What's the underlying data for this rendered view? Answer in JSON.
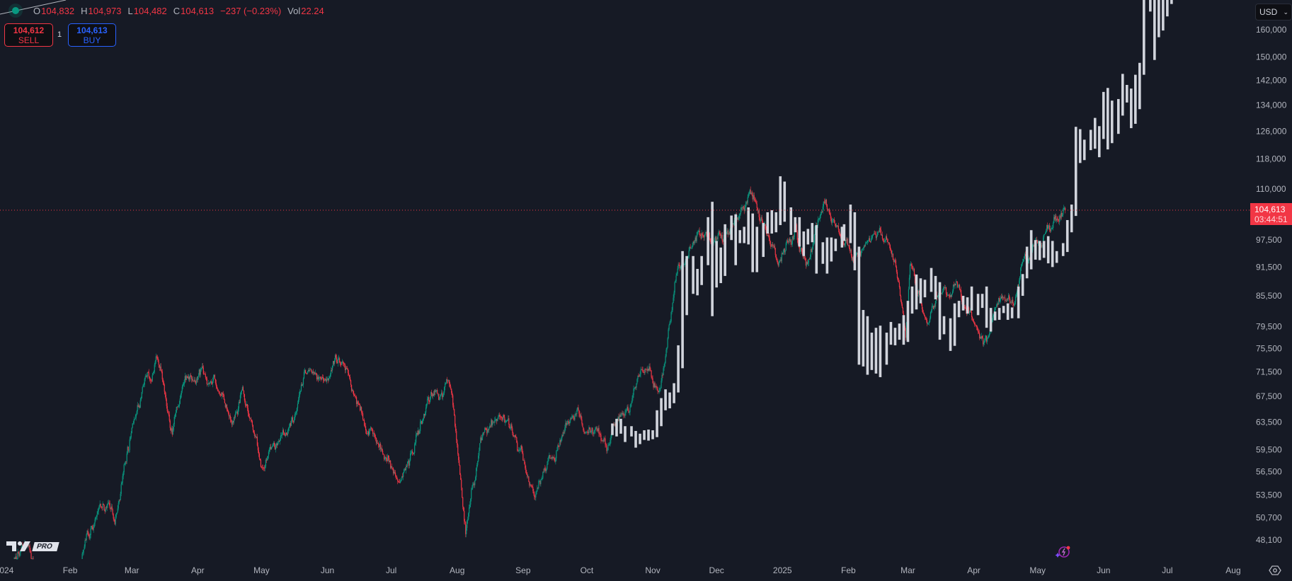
{
  "legend": {
    "open_label": "O",
    "open": "104,832",
    "high_label": "H",
    "high": "104,973",
    "low_label": "L",
    "low": "104,482",
    "close_label": "C",
    "close": "104,613",
    "change": "−237 (−0.23%)",
    "vol_label": "Vol",
    "vol": "22.24"
  },
  "trade": {
    "sell_price": "104,612",
    "sell_label": "SELL",
    "quantity": "1",
    "buy_price": "104,613",
    "buy_label": "BUY"
  },
  "currency": {
    "label": "USD",
    "icon": "chevron-down-icon"
  },
  "current_price": {
    "value": "104,613",
    "countdown": "03:44:51",
    "color": "#f23645"
  },
  "logo": {
    "text": "TV",
    "badge": "PRO"
  },
  "colors": {
    "up": "#089981",
    "down": "#f23645",
    "overlay": "#d1d4dc",
    "background": "#161a25",
    "text": "#b2b5be"
  },
  "chart_data": {
    "type": "candlestick",
    "y_scale": "log",
    "ylim": [
      46000,
      171600
    ],
    "xlim": [
      "2023-12-30",
      "2025-08-07"
    ],
    "grid": false,
    "price_axis_labels": [
      "160,000",
      "150,000",
      "142,000",
      "134,000",
      "126,000",
      "118,000",
      "110,000",
      "97,500",
      "91,500",
      "85,500",
      "79,500",
      "75,500",
      "71,500",
      "67,500",
      "63,500",
      "59,500",
      "56,500",
      "53,500",
      "50,700",
      "48,100"
    ],
    "time_axis_labels": [
      {
        "label": "2024",
        "date": "2024-01-01"
      },
      {
        "label": "Feb",
        "date": "2024-02-01"
      },
      {
        "label": "Mar",
        "date": "2024-03-01"
      },
      {
        "label": "Apr",
        "date": "2024-04-01"
      },
      {
        "label": "May",
        "date": "2024-05-01"
      },
      {
        "label": "Jun",
        "date": "2024-06-01"
      },
      {
        "label": "Jul",
        "date": "2024-07-01"
      },
      {
        "label": "Aug",
        "date": "2024-08-01"
      },
      {
        "label": "Sep",
        "date": "2024-09-01"
      },
      {
        "label": "Oct",
        "date": "2024-10-01"
      },
      {
        "label": "Nov",
        "date": "2024-11-01"
      },
      {
        "label": "Dec",
        "date": "2024-12-01"
      },
      {
        "label": "2025",
        "date": "2025-01-01"
      },
      {
        "label": "Feb",
        "date": "2025-02-01"
      },
      {
        "label": "Mar",
        "date": "2025-03-01"
      },
      {
        "label": "Apr",
        "date": "2025-04-01"
      },
      {
        "label": "May",
        "date": "2025-05-01"
      },
      {
        "label": "Jun",
        "date": "2025-06-01"
      },
      {
        "label": "Jul",
        "date": "2025-07-01"
      },
      {
        "label": "Aug",
        "date": "2025-08-01"
      }
    ],
    "last_price": 104613,
    "price_path": [
      [
        "2024-01-01",
        44000
      ],
      [
        "2024-01-10",
        47500
      ],
      [
        "2024-01-23",
        40000
      ],
      [
        "2024-02-05",
        45000
      ],
      [
        "2024-02-10",
        48000
      ],
      [
        "2024-02-15",
        52500
      ],
      [
        "2024-02-22",
        51000
      ],
      [
        "2024-02-26",
        57000
      ],
      [
        "2024-03-01",
        62500
      ],
      [
        "2024-03-05",
        67000
      ],
      [
        "2024-03-14",
        73000
      ],
      [
        "2024-03-20",
        62500
      ],
      [
        "2024-03-27",
        70500
      ],
      [
        "2024-04-08",
        71500
      ],
      [
        "2024-04-17",
        62000
      ],
      [
        "2024-04-22",
        66500
      ],
      [
        "2024-05-01",
        57000
      ],
      [
        "2024-05-10",
        61000
      ],
      [
        "2024-05-21",
        70500
      ],
      [
        "2024-06-07",
        71500
      ],
      [
        "2024-06-18",
        65000
      ],
      [
        "2024-07-05",
        54500
      ],
      [
        "2024-07-19",
        67500
      ],
      [
        "2024-07-29",
        69500
      ],
      [
        "2024-08-05",
        50000
      ],
      [
        "2024-08-12",
        60500
      ],
      [
        "2024-08-24",
        64000
      ],
      [
        "2024-09-06",
        53500
      ],
      [
        "2024-09-27",
        65500
      ],
      [
        "2024-10-10",
        59500
      ],
      [
        "2024-10-29",
        72000
      ],
      [
        "2024-11-04",
        67500
      ],
      [
        "2024-11-12",
        89500
      ],
      [
        "2024-11-22",
        98500
      ],
      [
        "2024-12-01",
        96500
      ],
      [
        "2024-12-17",
        107500
      ],
      [
        "2024-12-30",
        92500
      ],
      [
        "2025-01-07",
        100500
      ],
      [
        "2025-01-12",
        93000
      ],
      [
        "2025-01-21",
        107000
      ],
      [
        "2025-01-27",
        100500
      ],
      [
        "2025-02-03",
        92000
      ],
      [
        "2025-02-12",
        97500
      ],
      [
        "2025-02-20",
        98000
      ],
      [
        "2025-02-25",
        88500
      ],
      [
        "2025-02-28",
        79500
      ],
      [
        "2025-03-02",
        93500
      ],
      [
        "2025-03-10",
        78500
      ],
      [
        "2025-03-15",
        84000
      ],
      [
        "2025-03-24",
        88000
      ],
      [
        "2025-03-31",
        82500
      ],
      [
        "2025-04-07",
        76000
      ],
      [
        "2025-04-12",
        84500
      ],
      [
        "2025-04-20",
        85000
      ],
      [
        "2025-04-25",
        94000
      ],
      [
        "2025-05-02",
        96500
      ],
      [
        "2025-05-09",
        103000
      ],
      [
        "2025-05-14",
        104613
      ]
    ],
    "overlay_bars": [
      [
        "2024-10-13",
        61600,
        63300
      ],
      [
        "2024-10-15",
        61400,
        64000
      ],
      [
        "2024-10-17",
        61800,
        64000
      ],
      [
        "2024-10-19",
        60600,
        62900
      ],
      [
        "2024-10-22",
        61400,
        62900
      ],
      [
        "2024-10-24",
        59800,
        62200
      ],
      [
        "2024-10-26",
        60300,
        61800
      ],
      [
        "2024-10-28",
        60900,
        62300
      ],
      [
        "2024-10-30",
        60800,
        62400
      ],
      [
        "2024-11-01",
        61000,
        62300
      ],
      [
        "2024-11-03",
        61300,
        65300
      ],
      [
        "2024-11-05",
        62900,
        67200
      ],
      [
        "2024-11-07",
        65300,
        68600
      ],
      [
        "2024-11-09",
        65600,
        68100
      ],
      [
        "2024-11-11",
        66400,
        69600
      ],
      [
        "2024-11-13",
        68100,
        76100
      ],
      [
        "2024-11-15",
        72100,
        95000
      ],
      [
        "2024-11-17",
        81700,
        93900
      ],
      [
        "2024-11-20",
        85900,
        93900
      ],
      [
        "2024-11-22",
        85600,
        91100
      ],
      [
        "2024-11-24",
        87700,
        93900
      ],
      [
        "2024-11-27",
        91900,
        102900
      ],
      [
        "2024-11-29",
        81500,
        106700
      ],
      [
        "2024-12-01",
        87200,
        97300
      ],
      [
        "2024-12-03",
        88100,
        95800
      ],
      [
        "2024-12-05",
        89600,
        101200
      ],
      [
        "2024-12-08",
        97500,
        103300
      ],
      [
        "2024-12-10",
        91900,
        103600
      ],
      [
        "2024-12-12",
        96800,
        99800
      ],
      [
        "2024-12-14",
        96800,
        100600
      ],
      [
        "2024-12-16",
        96500,
        105300
      ],
      [
        "2024-12-18",
        90400,
        103800
      ],
      [
        "2024-12-20",
        90400,
        100600
      ],
      [
        "2024-12-23",
        93700,
        101500
      ],
      [
        "2024-12-25",
        99000,
        104100
      ],
      [
        "2024-12-27",
        99000,
        104600
      ],
      [
        "2024-12-29",
        99300,
        104100
      ],
      [
        "2024-12-31",
        101000,
        113300
      ],
      [
        "2025-01-02",
        101800,
        111900
      ],
      [
        "2025-01-05",
        98700,
        105300
      ],
      [
        "2025-01-07",
        99300,
        102900
      ],
      [
        "2025-01-09",
        96000,
        102900
      ],
      [
        "2025-01-11",
        93900,
        99500
      ],
      [
        "2025-01-13",
        96500,
        100100
      ],
      [
        "2025-01-15",
        97000,
        101500
      ],
      [
        "2025-01-17",
        90100,
        101000
      ],
      [
        "2025-01-20",
        92200,
        97000
      ],
      [
        "2025-01-22",
        90100,
        98100
      ],
      [
        "2025-01-24",
        92700,
        98100
      ],
      [
        "2025-01-26",
        95000,
        97800
      ],
      [
        "2025-01-29",
        95800,
        100600
      ],
      [
        "2025-01-30",
        97300,
        101200
      ],
      [
        "2025-02-02",
        96800,
        106000
      ],
      [
        "2025-02-04",
        90800,
        104100
      ],
      [
        "2025-02-06",
        72700,
        96000
      ],
      [
        "2025-02-08",
        72400,
        82700
      ],
      [
        "2025-02-10",
        71000,
        81500
      ],
      [
        "2025-02-12",
        71800,
        78400
      ],
      [
        "2025-02-14",
        71200,
        79300
      ],
      [
        "2025-02-16",
        70600,
        79700
      ],
      [
        "2025-02-19",
        72700,
        78400
      ],
      [
        "2025-02-21",
        76200,
        80400
      ],
      [
        "2025-02-23",
        76100,
        79300
      ],
      [
        "2025-02-25",
        77100,
        80100
      ],
      [
        "2025-02-27",
        76200,
        81700
      ],
      [
        "2025-03-01",
        76700,
        84500
      ],
      [
        "2025-03-03",
        82000,
        87400
      ],
      [
        "2025-03-05",
        82800,
        89900
      ],
      [
        "2025-03-07",
        84000,
        89100
      ],
      [
        "2025-03-09",
        85200,
        88800
      ],
      [
        "2025-03-12",
        86300,
        91300
      ],
      [
        "2025-03-14",
        84800,
        89600
      ],
      [
        "2025-03-16",
        77100,
        88300
      ],
      [
        "2025-03-18",
        78100,
        81500
      ],
      [
        "2025-03-21",
        75100,
        81100
      ],
      [
        "2025-03-23",
        76000,
        84000
      ],
      [
        "2025-03-25",
        81300,
        84500
      ],
      [
        "2025-03-27",
        82600,
        85500
      ],
      [
        "2025-03-29",
        82000,
        85200
      ],
      [
        "2025-03-31",
        82600,
        87400
      ],
      [
        "2025-04-03",
        81700,
        85900
      ],
      [
        "2025-04-05",
        83100,
        85900
      ],
      [
        "2025-04-07",
        79300,
        87400
      ],
      [
        "2025-04-09",
        78600,
        83100
      ],
      [
        "2025-04-11",
        80700,
        82400
      ],
      [
        "2025-04-13",
        80800,
        83100
      ],
      [
        "2025-04-15",
        82100,
        83500
      ],
      [
        "2025-04-17",
        80800,
        84000
      ],
      [
        "2025-04-19",
        81100,
        83200
      ],
      [
        "2025-04-22",
        81100,
        87400
      ],
      [
        "2025-04-24",
        85500,
        90000
      ],
      [
        "2025-04-26",
        89100,
        96000
      ],
      [
        "2025-04-28",
        91000,
        99800
      ],
      [
        "2025-04-30",
        93100,
        97500
      ],
      [
        "2025-05-02",
        93000,
        97300
      ],
      [
        "2025-05-04",
        93500,
        97300
      ],
      [
        "2025-05-06",
        92300,
        98400
      ],
      [
        "2025-05-08",
        91500,
        97300
      ],
      [
        "2025-05-10",
        92400,
        95000
      ],
      [
        "2025-05-13",
        93900,
        96800
      ],
      [
        "2025-05-15",
        94800,
        102200
      ],
      [
        "2025-05-17",
        99300,
        106000
      ],
      [
        "2025-05-19",
        103200,
        127300
      ],
      [
        "2025-05-21",
        116900,
        126600
      ],
      [
        "2025-05-23",
        117700,
        123500
      ],
      [
        "2025-05-26",
        120500,
        126400
      ],
      [
        "2025-05-28",
        120900,
        130000
      ],
      [
        "2025-05-30",
        118500,
        127500
      ],
      [
        "2025-06-01",
        123700,
        138200
      ],
      [
        "2025-06-03",
        120700,
        139500
      ],
      [
        "2025-06-05",
        122500,
        135400
      ],
      [
        "2025-06-08",
        125200,
        135900
      ],
      [
        "2025-06-10",
        130700,
        144200
      ],
      [
        "2025-06-12",
        134800,
        140500
      ],
      [
        "2025-06-14",
        126900,
        139300
      ],
      [
        "2025-06-16",
        128200,
        143900
      ],
      [
        "2025-06-18",
        132700,
        148000
      ],
      [
        "2025-06-20",
        143900,
        175000
      ],
      [
        "2025-06-23",
        167000,
        175000
      ],
      [
        "2025-06-25",
        149000,
        175000
      ],
      [
        "2025-06-27",
        157200,
        175000
      ],
      [
        "2025-06-29",
        159700,
        175000
      ],
      [
        "2025-07-01",
        165100,
        175000
      ],
      [
        "2025-07-03",
        170000,
        175000
      ]
    ]
  }
}
